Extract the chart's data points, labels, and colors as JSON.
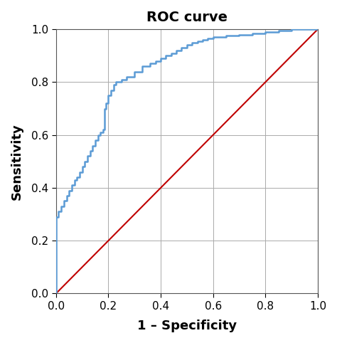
{
  "title": "ROC curve",
  "xlabel": "1 – Specificity",
  "ylabel": "Sensitivity",
  "xlim": [
    0.0,
    1.0
  ],
  "ylim": [
    0.0,
    1.0
  ],
  "xticks": [
    0.0,
    0.2,
    0.4,
    0.6,
    0.8,
    1.0
  ],
  "yticks": [
    0.0,
    0.2,
    0.4,
    0.6,
    0.8,
    1.0
  ],
  "roc_color": "#5B9BD5",
  "diagonal_color": "#C00000",
  "roc_linewidth": 1.8,
  "diagonal_linewidth": 1.5,
  "background_color": "#ffffff",
  "grid_color": "#AAAAAA",
  "title_fontsize": 14,
  "title_fontweight": "bold",
  "label_fontsize": 13,
  "label_fontweight": "bold",
  "tick_fontsize": 11,
  "roc_x": [
    0.0,
    0.0,
    0.01,
    0.01,
    0.02,
    0.02,
    0.03,
    0.03,
    0.04,
    0.04,
    0.05,
    0.05,
    0.06,
    0.06,
    0.07,
    0.07,
    0.08,
    0.08,
    0.09,
    0.09,
    0.1,
    0.1,
    0.11,
    0.11,
    0.12,
    0.12,
    0.13,
    0.13,
    0.14,
    0.14,
    0.15,
    0.15,
    0.16,
    0.16,
    0.17,
    0.17,
    0.18,
    0.18,
    0.185,
    0.185,
    0.19,
    0.19,
    0.2,
    0.2,
    0.21,
    0.21,
    0.22,
    0.22,
    0.23,
    0.23,
    0.25,
    0.25,
    0.27,
    0.27,
    0.3,
    0.3,
    0.33,
    0.33,
    0.36,
    0.36,
    0.38,
    0.38,
    0.4,
    0.4,
    0.42,
    0.42,
    0.44,
    0.44,
    0.46,
    0.46,
    0.48,
    0.48,
    0.5,
    0.5,
    0.52,
    0.52,
    0.54,
    0.54,
    0.56,
    0.56,
    0.58,
    0.58,
    0.6,
    0.6,
    0.65,
    0.65,
    0.7,
    0.7,
    0.75,
    0.75,
    0.8,
    0.8,
    0.85,
    0.85,
    0.9,
    0.9,
    1.0,
    1.0
  ],
  "roc_y": [
    0.0,
    0.29,
    0.29,
    0.31,
    0.31,
    0.33,
    0.33,
    0.35,
    0.35,
    0.37,
    0.37,
    0.39,
    0.39,
    0.41,
    0.41,
    0.43,
    0.43,
    0.44,
    0.44,
    0.46,
    0.46,
    0.48,
    0.48,
    0.5,
    0.5,
    0.52,
    0.52,
    0.54,
    0.54,
    0.56,
    0.56,
    0.58,
    0.58,
    0.6,
    0.6,
    0.61,
    0.61,
    0.62,
    0.62,
    0.7,
    0.7,
    0.72,
    0.72,
    0.75,
    0.75,
    0.77,
    0.77,
    0.79,
    0.79,
    0.8,
    0.8,
    0.81,
    0.81,
    0.82,
    0.82,
    0.84,
    0.84,
    0.86,
    0.86,
    0.87,
    0.87,
    0.88,
    0.88,
    0.89,
    0.89,
    0.9,
    0.9,
    0.91,
    0.91,
    0.92,
    0.92,
    0.93,
    0.93,
    0.94,
    0.94,
    0.95,
    0.95,
    0.955,
    0.955,
    0.96,
    0.96,
    0.965,
    0.965,
    0.97,
    0.97,
    0.975,
    0.975,
    0.98,
    0.98,
    0.985,
    0.985,
    0.99,
    0.99,
    0.995,
    0.995,
    1.0,
    1.0,
    1.0
  ]
}
